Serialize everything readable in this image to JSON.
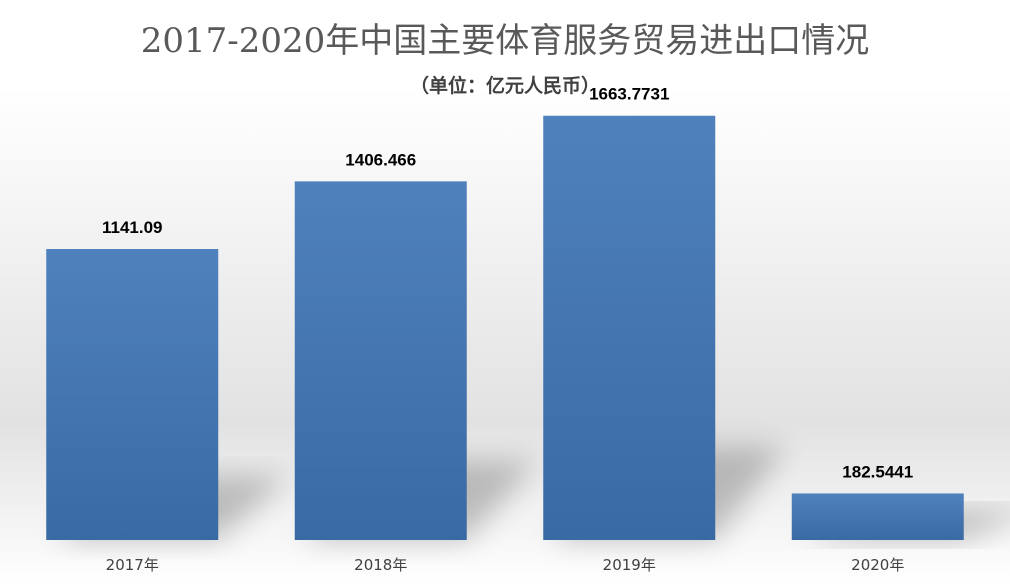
{
  "chart_data": {
    "type": "bar",
    "title": "2017-2020年中国主要体育服务贸易进出口情况",
    "subtitle": "（单位：亿元人民币）",
    "categories": [
      "2017年",
      "2018年",
      "2019年",
      "2020年"
    ],
    "values": [
      1141.09,
      1406.466,
      1663.7731,
      182.5441
    ],
    "value_labels": [
      "1141.09",
      "1406.466",
      "1663.7731",
      "182.5441"
    ],
    "ylim": [
      0,
      2000
    ],
    "grid": false,
    "legend": "none",
    "xlabel": "",
    "ylabel": "",
    "colors": {
      "bar_top": "#4F81BD",
      "bar_bottom": "#3A6AA4"
    }
  }
}
